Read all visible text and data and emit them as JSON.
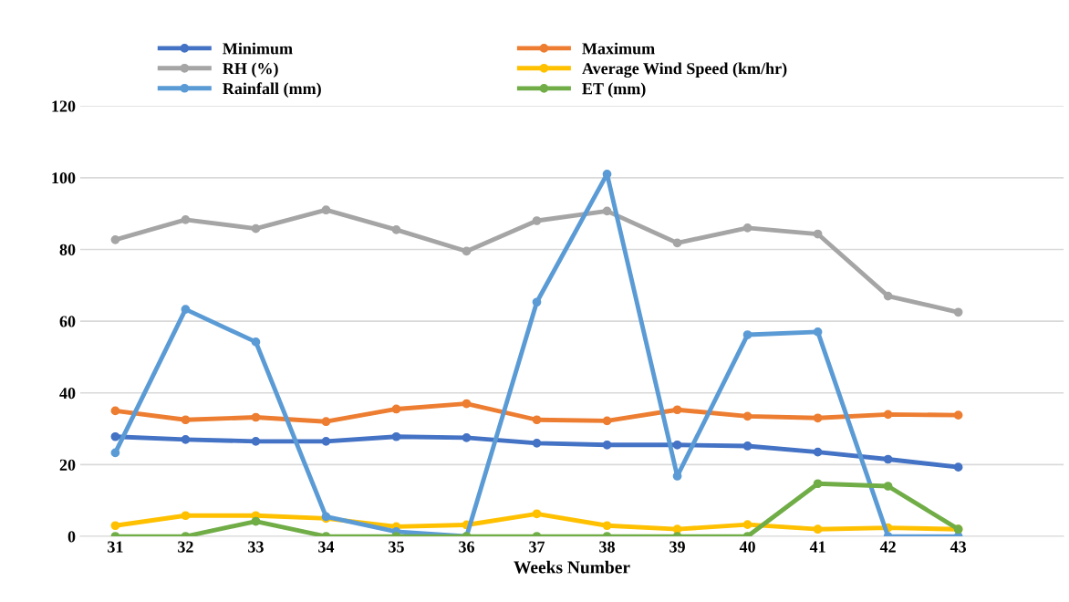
{
  "chart_data": {
    "type": "line",
    "xlabel": "Weeks Number",
    "categories": [
      "31",
      "32",
      "33",
      "34",
      "35",
      "36",
      "37",
      "38",
      "39",
      "40",
      "41",
      "42",
      "43"
    ],
    "series": [
      {
        "name": "Minimum",
        "color": "#4472c4",
        "values": [
          27.8,
          27,
          26.5,
          26.5,
          27.8,
          27.5,
          26,
          25.5,
          25.5,
          25.2,
          23.5,
          21.5,
          19.3
        ]
      },
      {
        "name": "Maximum",
        "color": "#ed7d31",
        "values": [
          35,
          32.5,
          33.2,
          32,
          35.5,
          37,
          32.5,
          32.2,
          35.3,
          33.5,
          33,
          34,
          33.8
        ]
      },
      {
        "name": "RH (%)",
        "color": "#a5a5a5",
        "values": [
          82.7,
          88.3,
          85.8,
          91,
          85.5,
          79.5,
          88,
          90.7,
          81.8,
          86,
          84.3,
          67,
          62.5
        ]
      },
      {
        "name": "Average Wind Speed (km/hr)",
        "color": "#ffc000",
        "values": [
          3,
          5.8,
          5.8,
          5,
          2.7,
          3.2,
          6.3,
          3,
          2,
          3.3,
          2,
          2.4,
          2
        ]
      },
      {
        "name": "Rainfall (mm)",
        "color": "#5b9bd5",
        "values": [
          23.3,
          63.3,
          54.2,
          5.5,
          1.3,
          0,
          65.3,
          101,
          16.8,
          56.2,
          57,
          0,
          0
        ]
      },
      {
        "name": "ET (mm)",
        "color": "#70ad47",
        "values": [
          0,
          0,
          4.2,
          0,
          0,
          0,
          0,
          0,
          0,
          0,
          14.7,
          14,
          2
        ]
      }
    ],
    "ylim": [
      0,
      120
    ],
    "yticks": [
      0,
      20,
      40,
      60,
      80,
      100,
      120
    ],
    "grid": "y",
    "legend": "top",
    "marker": "circle",
    "line_style": "solid"
  }
}
